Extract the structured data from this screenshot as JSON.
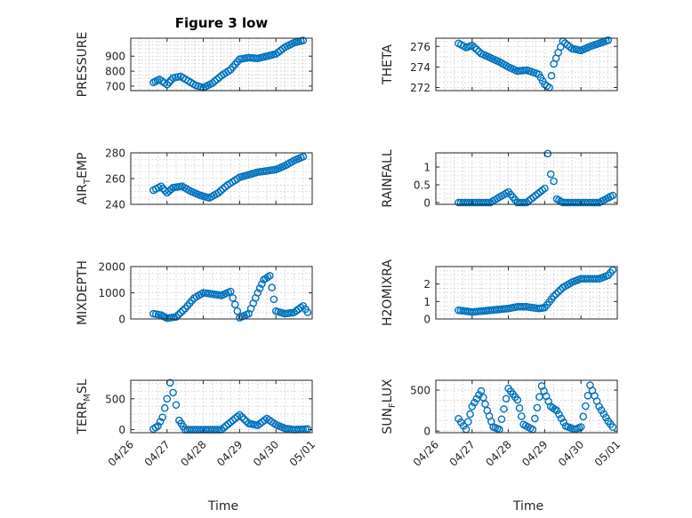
{
  "figure": {
    "title": "Figure 3 low",
    "xlabel": "Time",
    "marker_color": "#0072BD",
    "marker": "circle",
    "x_ticks": [
      "04/26",
      "04/27",
      "04/28",
      "04/29",
      "04/30",
      "05/01"
    ]
  },
  "chart_data": [
    {
      "type": "scatter",
      "name": "pressure",
      "title": "Figure 3 low",
      "ylabel": "PRESSURE",
      "ylim": [
        670,
        1020
      ],
      "yticks": [
        700,
        800,
        900
      ],
      "xlim": [
        "04/26",
        "05/01"
      ],
      "grid": true,
      "x": [
        "04/26 15:00",
        "04/26 19:00",
        "04/27 00:00",
        "04/27 04:00",
        "04/27 09:00",
        "04/27 14:00",
        "04/27 19:00",
        "04/28 00:00",
        "04/28 06:00",
        "04/28 12:00",
        "04/28 18:00",
        "04/29 00:00",
        "04/29 06:00",
        "04/29 12:00",
        "04/29 18:00",
        "04/30 00:00",
        "04/30 06:00",
        "04/30 12:00",
        "04/30 18:00"
      ],
      "y": [
        725,
        745,
        710,
        755,
        765,
        735,
        705,
        690,
        720,
        770,
        810,
        880,
        890,
        885,
        900,
        915,
        960,
        990,
        1005
      ]
    },
    {
      "type": "scatter",
      "name": "theta",
      "ylabel": "THETA",
      "ylim": [
        271.7,
        276.8
      ],
      "yticks": [
        272,
        274,
        276
      ],
      "xlim": [
        "04/26",
        "05/01"
      ],
      "grid": true,
      "x": [
        "04/26 15:00",
        "04/26 20:00",
        "04/27 00:00",
        "04/27 06:00",
        "04/27 12:00",
        "04/27 18:00",
        "04/28 00:00",
        "04/28 06:00",
        "04/28 12:00",
        "04/28 20:00",
        "04/29 00:00",
        "04/29 03:00",
        "04/29 06:00",
        "04/29 12:00",
        "04/29 18:00",
        "04/30 00:00",
        "04/30 06:00",
        "04/30 12:00",
        "04/30 18:00"
      ],
      "y": [
        276.3,
        275.9,
        276.1,
        275.3,
        274.9,
        274.5,
        274.0,
        273.6,
        273.7,
        273.3,
        272.3,
        272.0,
        274.3,
        276.5,
        275.8,
        275.6,
        276.0,
        276.3,
        276.6
      ]
    },
    {
      "type": "scatter",
      "name": "air_temp",
      "ylabel": "AIR_TEMP",
      "ylim": [
        240,
        280
      ],
      "yticks": [
        240,
        260,
        280
      ],
      "xlim": [
        "04/26",
        "05/01"
      ],
      "grid": true,
      "x": [
        "04/26 15:00",
        "04/26 20:00",
        "04/27 00:00",
        "04/27 04:00",
        "04/27 10:00",
        "04/27 16:00",
        "04/27 22:00",
        "04/28 04:00",
        "04/28 10:00",
        "04/28 16:00",
        "04/29 00:00",
        "04/29 06:00",
        "04/29 12:00",
        "04/29 18:00",
        "04/30 00:00",
        "04/30 06:00",
        "04/30 12:00",
        "04/30 18:00"
      ],
      "y": [
        251,
        254,
        249,
        253,
        254,
        250,
        247,
        245,
        249,
        255,
        261,
        263,
        265,
        266,
        267,
        270,
        274,
        277
      ]
    },
    {
      "type": "scatter",
      "name": "rainfall",
      "ylabel": "RAINFALL",
      "ylim": [
        -0.05,
        1.4
      ],
      "yticks": [
        0,
        0.5,
        1
      ],
      "xlim": [
        "04/26",
        "05/01"
      ],
      "grid": true,
      "x": [
        "04/26 15:00",
        "04/27 00:00",
        "04/27 12:00",
        "04/28 00:00",
        "04/28 06:00",
        "04/28 12:00",
        "04/29 00:00",
        "04/29 02:00",
        "04/29 04:00",
        "04/29 06:00",
        "04/29 08:00",
        "04/29 12:00",
        "04/30 00:00",
        "04/30 12:00",
        "04/30 21:00"
      ],
      "y": [
        0,
        0,
        0,
        0.3,
        0,
        0,
        0.4,
        1.38,
        0.8,
        0.6,
        0.1,
        0,
        0,
        0,
        0.2
      ]
    },
    {
      "type": "scatter",
      "name": "mixdepth",
      "ylabel": "MIXDEPTH",
      "ylim": [
        0,
        2000
      ],
      "yticks": [
        0,
        1000,
        2000
      ],
      "xlim": [
        "04/26",
        "05/01"
      ],
      "grid": true,
      "x": [
        "04/26 15:00",
        "04/26 20:00",
        "04/27 00:00",
        "04/27 06:00",
        "04/27 12:00",
        "04/27 18:00",
        "04/28 00:00",
        "04/28 06:00",
        "04/28 12:00",
        "04/28 18:00",
        "04/29 00:00",
        "04/29 06:00",
        "04/29 12:00",
        "04/29 16:00",
        "04/29 20:00",
        "04/30 00:00",
        "04/30 06:00",
        "04/30 12:00",
        "04/30 18:00",
        "04/30 21:00"
      ],
      "y": [
        200,
        150,
        30,
        80,
        400,
        800,
        1000,
        950,
        900,
        1050,
        50,
        200,
        1000,
        1500,
        1650,
        300,
        200,
        250,
        500,
        250
      ]
    },
    {
      "type": "scatter",
      "name": "h2omixra",
      "ylabel": "H2OMIXRA",
      "ylim": [
        0,
        3
      ],
      "yticks": [
        0,
        1,
        2
      ],
      "xlim": [
        "04/26",
        "05/01"
      ],
      "grid": true,
      "x": [
        "04/26 15:00",
        "04/27 00:00",
        "04/27 12:00",
        "04/28 00:00",
        "04/28 06:00",
        "04/28 12:00",
        "04/28 20:00",
        "04/29 00:00",
        "04/29 06:00",
        "04/29 12:00",
        "04/29 18:00",
        "04/30 00:00",
        "04/30 06:00",
        "04/30 12:00",
        "04/30 18:00",
        "04/30 21:00"
      ],
      "y": [
        0.5,
        0.4,
        0.5,
        0.6,
        0.7,
        0.7,
        0.6,
        0.65,
        1.3,
        1.8,
        2.1,
        2.3,
        2.3,
        2.3,
        2.5,
        2.8
      ]
    },
    {
      "type": "scatter",
      "name": "terr_msl",
      "ylabel": "TERR_MSL",
      "ylim": [
        -50,
        800
      ],
      "yticks": [
        0,
        500
      ],
      "xlim": [
        "04/26",
        "05/01"
      ],
      "grid": true,
      "x": [
        "04/26 15:00",
        "04/26 18:00",
        "04/26 21:00",
        "04/27 00:00",
        "04/27 02:00",
        "04/27 04:00",
        "04/27 06:00",
        "04/27 08:00",
        "04/27 12:00",
        "04/28 00:00",
        "04/28 12:00",
        "04/29 00:00",
        "04/29 06:00",
        "04/29 12:00",
        "04/29 18:00",
        "04/30 00:00",
        "04/30 06:00",
        "04/30 12:00",
        "04/30 21:00"
      ],
      "y": [
        10,
        60,
        200,
        500,
        760,
        600,
        400,
        150,
        0,
        0,
        0,
        240,
        100,
        70,
        180,
        80,
        20,
        0,
        10
      ]
    },
    {
      "type": "scatter",
      "name": "sun_flux",
      "ylabel": "SUN_FLUX",
      "ylim": [
        -20,
        620
      ],
      "yticks": [
        0,
        500
      ],
      "xlim": [
        "04/26",
        "05/01"
      ],
      "grid": true,
      "x": [
        "04/26 15:00",
        "04/26 20:00",
        "04/27 00:00",
        "04/27 06:00",
        "04/27 10:00",
        "04/27 14:00",
        "04/27 18:00",
        "04/28 00:00",
        "04/28 06:00",
        "04/28 10:00",
        "04/28 16:00",
        "04/28 22:00",
        "04/29 04:00",
        "04/29 08:00",
        "04/29 14:00",
        "04/29 20:00",
        "04/30 00:00",
        "04/30 06:00",
        "04/30 12:00",
        "04/30 18:00",
        "04/30 21:00"
      ],
      "y": [
        150,
        20,
        300,
        490,
        250,
        50,
        20,
        520,
        380,
        80,
        20,
        550,
        300,
        250,
        60,
        20,
        50,
        560,
        300,
        120,
        50
      ]
    }
  ]
}
